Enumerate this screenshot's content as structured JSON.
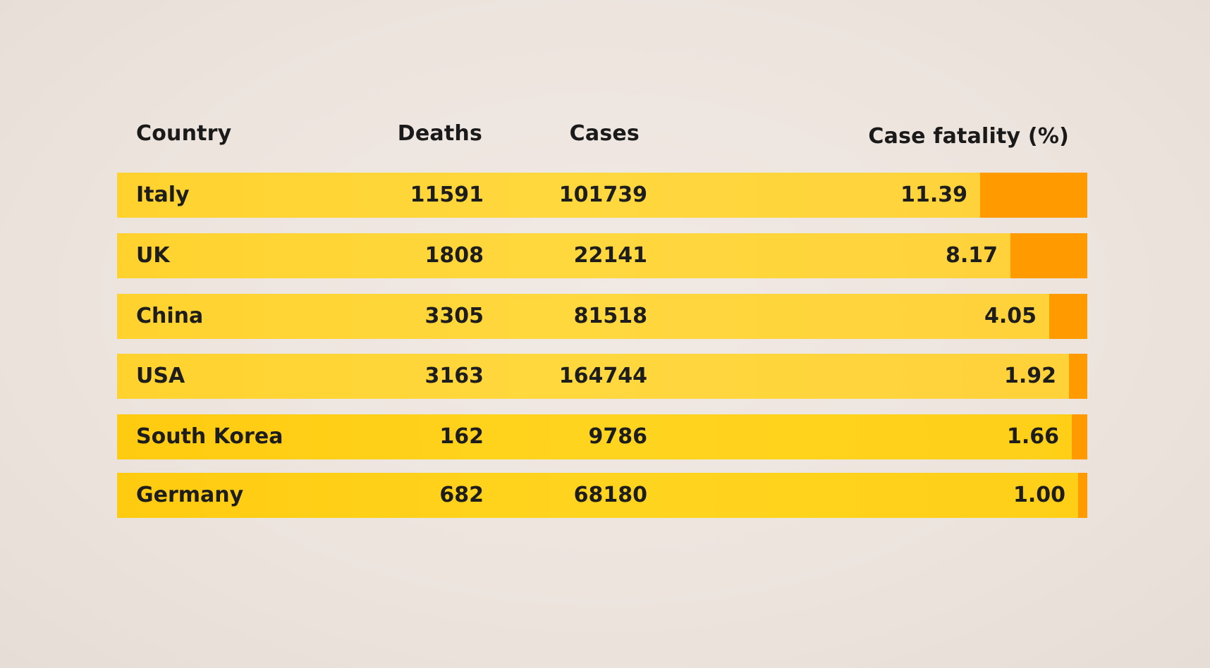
{
  "colors": {
    "background": "#ede4de",
    "row": "#ffd22e",
    "bar": "#ff9a00",
    "text": "#1d1d1d"
  },
  "chart_data": {
    "type": "table",
    "columns": [
      "Country",
      "Deaths",
      "Cases",
      "Case fatality (%)"
    ],
    "rows": [
      {
        "country": "Italy",
        "deaths": "11591",
        "cases": "101739",
        "cfr": "11.39"
      },
      {
        "country": "UK",
        "deaths": "1808",
        "cases": "22141",
        "cfr": "8.17"
      },
      {
        "country": "China",
        "deaths": "3305",
        "cases": "81518",
        "cfr": "4.05"
      },
      {
        "country": "USA",
        "deaths": "3163",
        "cases": "164744",
        "cfr": "1.92"
      },
      {
        "country": "South Korea",
        "deaths": "162",
        "cases": "9786",
        "cfr": "1.66"
      },
      {
        "country": "Germany",
        "deaths": "682",
        "cases": "68180",
        "cfr": "1.00"
      }
    ]
  }
}
